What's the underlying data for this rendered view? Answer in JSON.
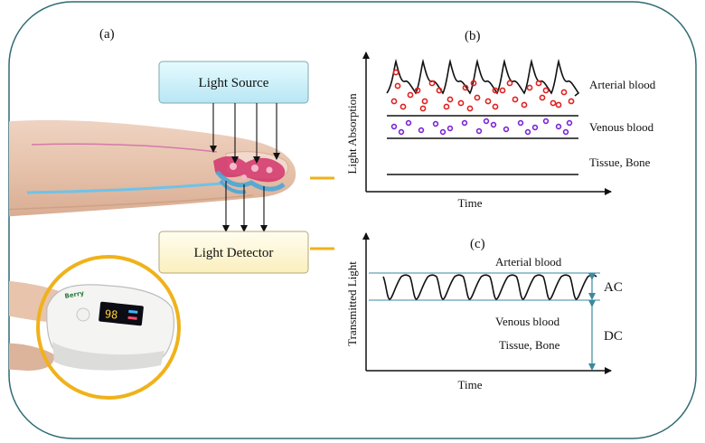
{
  "panel_a": {
    "label": "(a)",
    "source_box": "Light Source",
    "detector_box": "Light Detector"
  },
  "panel_b": {
    "label": "(b)",
    "y_axis": "Light Absorption",
    "x_axis": "Time",
    "layers": {
      "arterial": "Arterial blood",
      "venous": "Venous blood",
      "tissue": "Tissue, Bone"
    }
  },
  "panel_c": {
    "label": "(c)",
    "y_axis": "Transmitted Light",
    "x_axis": "Time",
    "arterial": "Arterial blood",
    "ac": "AC",
    "dc": "DC",
    "venous": "Venous blood",
    "tissue": "Tissue, Bone"
  },
  "device": {
    "brand_text": "Berry",
    "display_value": "98"
  },
  "colors": {
    "frame": "#2f6b74",
    "source_box_fill": "#c9f0fb",
    "detector_box_fill": "#fff8d6",
    "accent_orange": "#f0b21a",
    "arterial_dots": "#e02020",
    "venous_dots": "#7a22d6",
    "ac_dc_arrow": "#3a8aa0",
    "finger_skin": "#e8c4ad",
    "vessel_red": "#d2336b",
    "vessel_blue": "#4aa6d8"
  }
}
